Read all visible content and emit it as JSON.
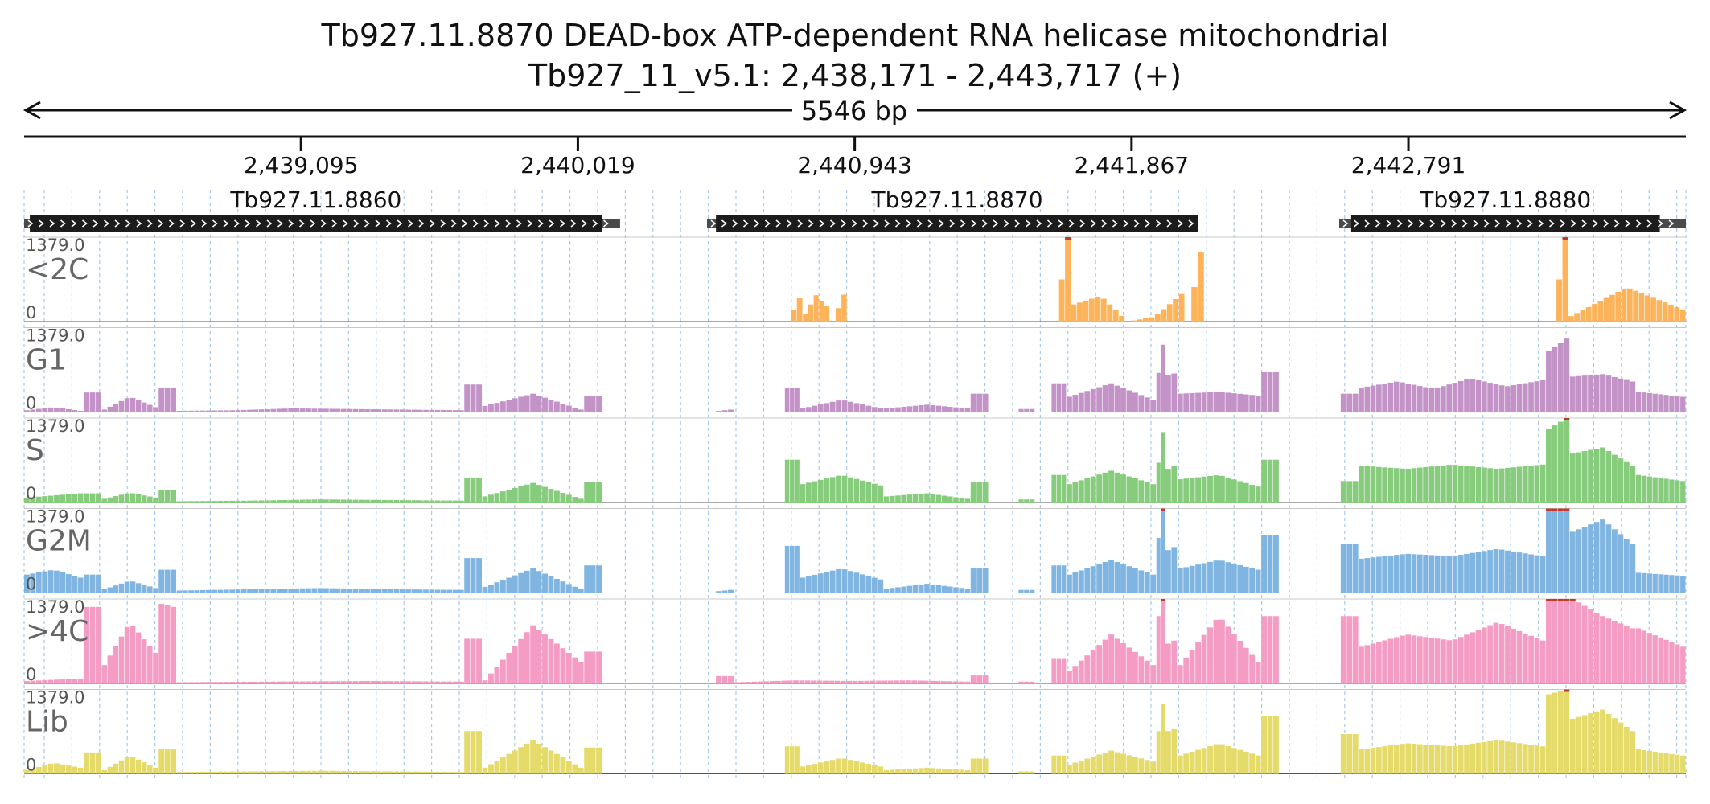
{
  "title_line1": "Tb927.11.8870  DEAD-box ATP-dependent RNA helicase  mitochondrial",
  "title_line2": "Tb927_11_v5.1: 2,438,171 - 2,443,717 (+)",
  "span_label": "5546 bp",
  "colors": {
    "<2C": "#fdb35a",
    "G1": "#c393c8",
    "S": "#86cc7c",
    "G2M": "#7fb5e0",
    ">4C": "#f59cc4",
    "Lib": "#e4db6a",
    "clip": "#c0392b"
  },
  "chart_data": {
    "type": "area",
    "region": {
      "chrom": "Tb927_11_v5.1",
      "start": 2438171,
      "end": 2443717,
      "strand": "+"
    },
    "coordinate_ticks": [
      {
        "pos": 2439095,
        "label": "2,439,095"
      },
      {
        "pos": 2440019,
        "label": "2,440,019"
      },
      {
        "pos": 2440943,
        "label": "2,440,943"
      },
      {
        "pos": 2441867,
        "label": "2,441,867"
      },
      {
        "pos": 2442791,
        "label": "2,442,791"
      }
    ],
    "genes": [
      {
        "name": "Tb927.11.8860",
        "start": 2438171,
        "end": 2440160,
        "cds_start": 2438190,
        "cds_end": 2440100,
        "strand": "+"
      },
      {
        "name": "Tb927.11.8870",
        "start": 2440450,
        "end": 2442090,
        "cds_start": 2440480,
        "cds_end": 2442090,
        "strand": "+"
      },
      {
        "name": "Tb927.11.8880",
        "start": 2442560,
        "end": 2443717,
        "cds_start": 2442600,
        "cds_end": 2443630,
        "strand": "+"
      }
    ],
    "ylim": [
      0,
      1379.0
    ],
    "y_max_label": "1379.0",
    "y_min_label": "0",
    "tracks": [
      {
        "name": "<2C",
        "segments": [
          [
            2440710,
            2440770,
            0,
            0,
            380,
            380
          ],
          [
            2440770,
            2440860,
            130,
            430,
            250
          ],
          [
            2440860,
            2440918,
            0,
            0,
            440,
            440
          ],
          [
            2441605,
            2441665,
            0,
            0,
            1379,
            1379
          ],
          [
            2441665,
            2442045,
            280,
            420,
            0,
            80,
            450
          ],
          [
            2442045,
            2442110,
            0,
            0,
            1130,
            1130
          ],
          [
            2442110,
            2442265,
            0,
            0
          ],
          [
            2443265,
            2443325,
            0,
            0,
            1379,
            1379
          ],
          [
            2443325,
            2443717,
            90,
            560,
            200
          ]
        ]
      },
      {
        "name": "G1",
        "segments": [
          [
            2438171,
            2438370,
            30,
            80,
            20
          ],
          [
            2438370,
            2438430,
            320,
            320
          ],
          [
            2438430,
            2438620,
            40,
            250,
            80
          ],
          [
            2438620,
            2438680,
            400,
            400
          ],
          [
            2438680,
            2439640,
            20,
            30,
            60,
            50,
            40,
            30
          ],
          [
            2439640,
            2439700,
            450,
            450
          ],
          [
            2439700,
            2440040,
            100,
            300,
            40
          ],
          [
            2440040,
            2440100,
            260,
            260
          ],
          [
            2440480,
            2440540,
            20,
            40
          ],
          [
            2440710,
            2440760,
            400,
            400
          ],
          [
            2440760,
            2441040,
            60,
            200,
            60
          ],
          [
            2441040,
            2441330,
            60,
            120,
            60
          ],
          [
            2441330,
            2441390,
            300,
            300
          ],
          [
            2441490,
            2441545,
            50,
            50
          ],
          [
            2441600,
            2441650,
            470,
            470
          ],
          [
            2441650,
            2441950,
            250,
            470,
            200
          ],
          [
            2441950,
            2441980,
            640,
            1100
          ],
          [
            2441980,
            2442020,
            600,
            630
          ],
          [
            2442020,
            2442300,
            300,
            330,
            270
          ],
          [
            2442300,
            2442360,
            650,
            650
          ],
          [
            2442565,
            2442625,
            300,
            300
          ],
          [
            2442625,
            2443250,
            400,
            500,
            380,
            550,
            420,
            520
          ],
          [
            2443250,
            2443330,
            1000,
            1200
          ],
          [
            2443330,
            2443550,
            580,
            620,
            500
          ],
          [
            2443550,
            2443717,
            330,
            250
          ]
        ]
      },
      {
        "name": "S",
        "segments": [
          [
            2438171,
            2438370,
            80,
            150
          ],
          [
            2438370,
            2438430,
            150,
            150
          ],
          [
            2438430,
            2438620,
            60,
            160,
            80
          ],
          [
            2438620,
            2438680,
            210,
            210
          ],
          [
            2438680,
            2439640,
            20,
            30,
            50,
            40,
            30
          ],
          [
            2439640,
            2439700,
            400,
            400
          ],
          [
            2439700,
            2440040,
            100,
            320,
            60
          ],
          [
            2440040,
            2440100,
            330,
            330
          ],
          [
            2440710,
            2440760,
            700,
            700
          ],
          [
            2440760,
            2441040,
            300,
            450,
            280
          ],
          [
            2441040,
            2441330,
            100,
            150,
            60
          ],
          [
            2441330,
            2441390,
            330,
            330
          ],
          [
            2441490,
            2441545,
            50,
            50
          ],
          [
            2441600,
            2441650,
            450,
            450
          ],
          [
            2441650,
            2441950,
            300,
            520,
            300
          ],
          [
            2441950,
            2441980,
            650,
            1150
          ],
          [
            2441980,
            2442020,
            550,
            600
          ],
          [
            2442020,
            2442300,
            380,
            450,
            260
          ],
          [
            2442300,
            2442360,
            700,
            700
          ],
          [
            2442565,
            2442625,
            350,
            350
          ],
          [
            2442625,
            2443250,
            600,
            550,
            620,
            550,
            620
          ],
          [
            2443250,
            2443330,
            1200,
            1379
          ],
          [
            2443330,
            2443550,
            800,
            900,
            600
          ],
          [
            2443550,
            2443717,
            450,
            350
          ]
        ]
      },
      {
        "name": "G2M",
        "segments": [
          [
            2438171,
            2438370,
            300,
            380,
            250
          ],
          [
            2438370,
            2438430,
            300,
            300
          ],
          [
            2438430,
            2438620,
            60,
            200,
            80
          ],
          [
            2438620,
            2438680,
            380,
            380
          ],
          [
            2438680,
            2439640,
            40,
            60,
            80,
            60,
            50
          ],
          [
            2439640,
            2439700,
            570,
            570
          ],
          [
            2439700,
            2440040,
            100,
            400,
            60
          ],
          [
            2440040,
            2440100,
            450,
            450
          ],
          [
            2440480,
            2440540,
            30,
            50
          ],
          [
            2440710,
            2440760,
            770,
            770
          ],
          [
            2440760,
            2441040,
            250,
            400,
            220
          ],
          [
            2441040,
            2441330,
            70,
            150,
            70
          ],
          [
            2441330,
            2441390,
            400,
            400
          ],
          [
            2441490,
            2441545,
            50,
            50
          ],
          [
            2441600,
            2441650,
            450,
            450
          ],
          [
            2441650,
            2441950,
            300,
            540,
            300
          ],
          [
            2441950,
            2441980,
            900,
            1379
          ],
          [
            2441980,
            2442020,
            700,
            750
          ],
          [
            2442020,
            2442300,
            400,
            540,
            380
          ],
          [
            2442300,
            2442360,
            950,
            950
          ],
          [
            2442565,
            2442625,
            800,
            800
          ],
          [
            2442625,
            2443250,
            560,
            640,
            600,
            720,
            600
          ],
          [
            2443250,
            2443330,
            1379,
            1379
          ],
          [
            2443330,
            2443550,
            1000,
            1200,
            800
          ],
          [
            2443550,
            2443717,
            330,
            280
          ]
        ]
      },
      {
        "name": ">4C",
        "segments": [
          [
            2438171,
            2438370,
            40,
            80
          ],
          [
            2438370,
            2438430,
            1250,
            1250
          ],
          [
            2438430,
            2438620,
            300,
            1000,
            500
          ],
          [
            2438620,
            2438680,
            1300,
            1250
          ],
          [
            2438680,
            2439640,
            20,
            30,
            40,
            30
          ],
          [
            2439640,
            2439700,
            730,
            730
          ],
          [
            2439700,
            2440040,
            50,
            950,
            350
          ],
          [
            2440040,
            2440100,
            520,
            520
          ],
          [
            2440480,
            2440540,
            120,
            120
          ],
          [
            2440540,
            2441330,
            20,
            50,
            40,
            50,
            30
          ],
          [
            2441330,
            2441390,
            130,
            130
          ],
          [
            2441490,
            2441545,
            30,
            30
          ],
          [
            2441600,
            2441650,
            400,
            400
          ],
          [
            2441650,
            2441950,
            200,
            800,
            300
          ],
          [
            2441950,
            2441980,
            1100,
            1379
          ],
          [
            2441980,
            2442020,
            650,
            700
          ],
          [
            2442020,
            2442300,
            300,
            1100,
            350
          ],
          [
            2442300,
            2442360,
            1100,
            1100
          ],
          [
            2442565,
            2442625,
            1100,
            1100
          ],
          [
            2442625,
            2443250,
            600,
            800,
            700,
            1000,
            700
          ],
          [
            2443250,
            2443330,
            1379,
            1379
          ],
          [
            2443330,
            2443550,
            1379,
            1100,
            900
          ],
          [
            2443550,
            2443717,
            900,
            600
          ]
        ]
      },
      {
        "name": "Lib",
        "segments": [
          [
            2438171,
            2438370,
            60,
            180,
            100
          ],
          [
            2438370,
            2438430,
            350,
            350
          ],
          [
            2438430,
            2438620,
            60,
            300,
            100
          ],
          [
            2438620,
            2438680,
            400,
            400
          ],
          [
            2438680,
            2439640,
            30,
            40,
            50,
            40,
            30
          ],
          [
            2439640,
            2439700,
            700,
            700
          ],
          [
            2439700,
            2440040,
            100,
            550,
            100
          ],
          [
            2440040,
            2440100,
            430,
            430
          ],
          [
            2440710,
            2440760,
            450,
            450
          ],
          [
            2440760,
            2441040,
            120,
            260,
            120
          ],
          [
            2441040,
            2441330,
            60,
            100,
            60
          ],
          [
            2441330,
            2441390,
            250,
            250
          ],
          [
            2441490,
            2441545,
            40,
            40
          ],
          [
            2441600,
            2441650,
            300,
            300
          ],
          [
            2441650,
            2441950,
            150,
            380,
            200
          ],
          [
            2441950,
            2441980,
            700,
            1150
          ],
          [
            2441980,
            2442020,
            700,
            730
          ],
          [
            2442020,
            2442300,
            300,
            500,
            300
          ],
          [
            2442300,
            2442360,
            950,
            950
          ],
          [
            2442565,
            2442625,
            650,
            650
          ],
          [
            2442625,
            2443250,
            400,
            500,
            450,
            550,
            450
          ],
          [
            2443250,
            2443330,
            1300,
            1379
          ],
          [
            2443330,
            2443550,
            900,
            1050,
            700
          ],
          [
            2443550,
            2443717,
            400,
            300
          ]
        ]
      }
    ]
  }
}
